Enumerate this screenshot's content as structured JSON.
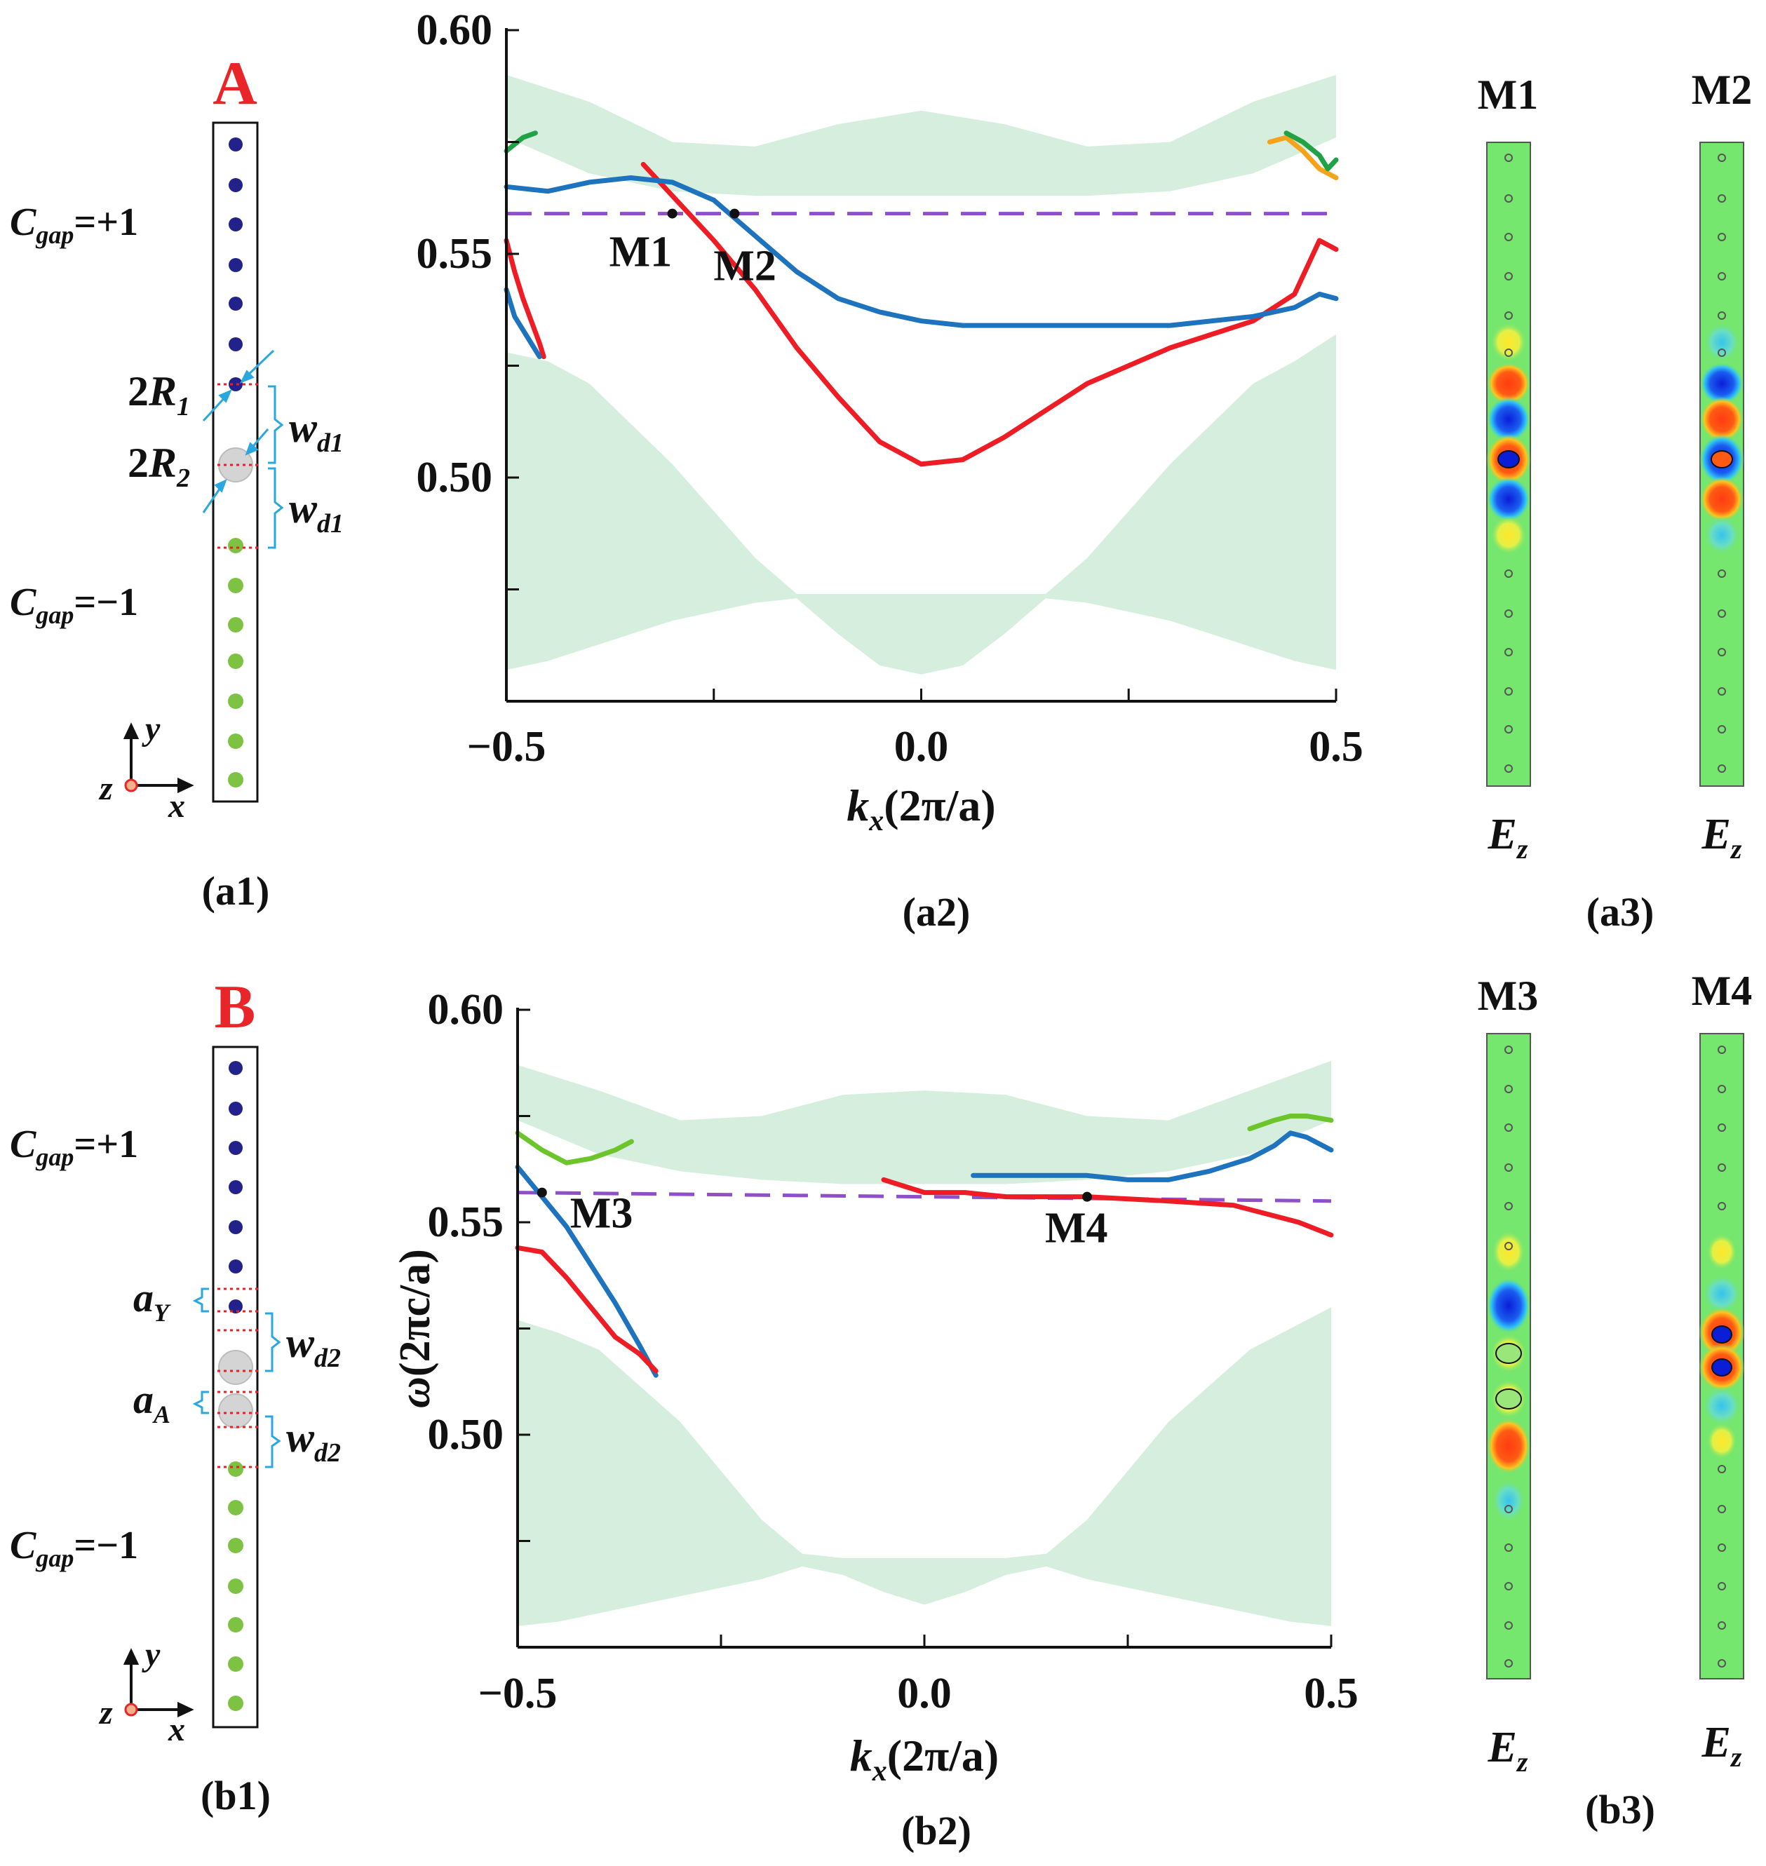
{
  "colors": {
    "red_label": "#e8262a",
    "blue_rod": "#22228a",
    "green_rod": "#7dc242",
    "band": "#d6eedd",
    "red_curve": "#ee1c24",
    "blue_curve": "#1e73be",
    "green_curve": "#22a246",
    "orange_curve": "#f5a31a",
    "lime_curve": "#6cc52a",
    "dashed": "#8e4fc9",
    "cyan": "#29a8e0"
  },
  "panel_a": {
    "structure": {
      "label": "A",
      "cgap_top": {
        "base": "C",
        "sub": "gap",
        "rest": "=+1"
      },
      "cgap_bottom": {
        "base": "C",
        "sub": "gap",
        "rest": "=−1"
      },
      "r1": {
        "pre": "2",
        "base": "R",
        "sub": "1"
      },
      "r2": {
        "pre": "2",
        "base": "R",
        "sub": "2"
      },
      "w1": {
        "base": "w",
        "sub": "d1"
      },
      "w2": {
        "base": "w",
        "sub": "d1"
      },
      "axes": {
        "y": "y",
        "x": "x",
        "z": "z"
      },
      "caption": "(a1)"
    },
    "chart_caption": "(a2)",
    "fields": {
      "caption": "(a3)",
      "items": [
        {
          "title": "M1",
          "field": {
            "base": "E",
            "sub": "z"
          }
        },
        {
          "title": "M2",
          "field": {
            "base": "E",
            "sub": "z"
          }
        }
      ]
    }
  },
  "panel_b": {
    "structure": {
      "label": "B",
      "cgap_top": {
        "base": "C",
        "sub": "gap",
        "rest": "=+1"
      },
      "cgap_bottom": {
        "base": "C",
        "sub": "gap",
        "rest": "=−1"
      },
      "ay": {
        "base": "a",
        "sub": "Y"
      },
      "aa": {
        "base": "a",
        "sub": "A"
      },
      "w1": {
        "base": "w",
        "sub": "d2"
      },
      "w2": {
        "base": "w",
        "sub": "d2"
      },
      "axes": {
        "y": "y",
        "x": "x",
        "z": "z"
      },
      "caption": "(b1)"
    },
    "chart_caption": "(b2)",
    "fields": {
      "caption": "(b3)",
      "items": [
        {
          "title": "M3",
          "field": {
            "base": "E",
            "sub": "z"
          }
        },
        {
          "title": "M4",
          "field": {
            "base": "E",
            "sub": "z"
          }
        }
      ]
    }
  },
  "chart_data": [
    {
      "id": "a2",
      "type": "line",
      "xlabel": {
        "base": "k",
        "sub": "x",
        "rest": "(2π/a)"
      },
      "ylabel": "",
      "xlim": [
        -0.5,
        0.5
      ],
      "ylim": [
        0.45,
        0.6
      ],
      "xticks": [
        "−0.5",
        "0.0",
        "0.5"
      ],
      "xtick_values": [
        -0.5,
        0.0,
        0.5
      ],
      "yticks": [
        "0.50",
        "0.55",
        "0.60"
      ],
      "ytick_values": [
        0.5,
        0.55,
        0.6
      ],
      "bulk_bands": [
        {
          "name": "upper bulk",
          "x": [
            -0.5,
            -0.4,
            -0.3,
            -0.2,
            -0.1,
            0,
            0.1,
            0.2,
            0.3,
            0.4,
            0.5
          ],
          "lower": [
            0.576,
            0.568,
            0.564,
            0.563,
            0.563,
            0.563,
            0.563,
            0.563,
            0.564,
            0.568,
            0.576
          ],
          "upper": [
            0.59,
            0.584,
            0.575,
            0.574,
            0.579,
            0.582,
            0.579,
            0.574,
            0.575,
            0.584,
            0.59
          ]
        },
        {
          "name": "lower bulk",
          "x": [
            -0.5,
            -0.45,
            -0.4,
            -0.3,
            -0.2,
            -0.15,
            -0.1,
            -0.05,
            0,
            0.05,
            0.1,
            0.15,
            0.2,
            0.3,
            0.4,
            0.45,
            0.5
          ],
          "lower": [
            0.457,
            0.459,
            0.462,
            0.468,
            0.472,
            0.473,
            0.465,
            0.458,
            0.456,
            0.458,
            0.465,
            0.473,
            0.472,
            0.468,
            0.462,
            0.459,
            0.457
          ],
          "upper": [
            0.528,
            0.526,
            0.521,
            0.503,
            0.482,
            0.474,
            0.474,
            0.474,
            0.474,
            0.474,
            0.474,
            0.474,
            0.482,
            0.503,
            0.521,
            0.526,
            0.532
          ]
        }
      ],
      "series": [
        {
          "name": "red edge",
          "color": "red_curve",
          "x": [
            -0.335,
            -0.3,
            -0.25,
            -0.2,
            -0.15,
            -0.1,
            -0.05,
            0,
            0.05,
            0.1,
            0.2,
            0.3,
            0.4,
            0.45,
            0.48,
            0.5
          ],
          "y": [
            0.57,
            0.563,
            0.553,
            0.542,
            0.529,
            0.518,
            0.508,
            0.503,
            0.504,
            0.509,
            0.521,
            0.529,
            0.535,
            0.541,
            0.553,
            0.551
          ]
        },
        {
          "name": "blue edge",
          "color": "blue_curve",
          "x": [
            -0.5,
            -0.45,
            -0.4,
            -0.35,
            -0.3,
            -0.25,
            -0.2,
            -0.15,
            -0.1,
            -0.05,
            0,
            0.05,
            0.1,
            0.2,
            0.3,
            0.4,
            0.45,
            0.48,
            0.5
          ],
          "y": [
            0.565,
            0.564,
            0.566,
            0.567,
            0.566,
            0.562,
            0.554,
            0.546,
            0.54,
            0.537,
            0.535,
            0.534,
            0.534,
            0.534,
            0.534,
            0.536,
            0.538,
            0.541,
            0.54
          ]
        },
        {
          "name": "red left",
          "color": "red_curve",
          "x": [
            -0.5,
            -0.49,
            -0.48,
            -0.47,
            -0.46,
            -0.455
          ],
          "y": [
            0.553,
            0.546,
            0.54,
            0.535,
            0.53,
            0.527
          ]
        },
        {
          "name": "blue left",
          "color": "blue_curve",
          "x": [
            -0.5,
            -0.49,
            -0.48,
            -0.47,
            -0.46
          ],
          "y": [
            0.542,
            0.536,
            0.533,
            0.53,
            0.527
          ]
        },
        {
          "name": "green left",
          "color": "green_curve",
          "x": [
            -0.5,
            -0.48,
            -0.465
          ],
          "y": [
            0.573,
            0.576,
            0.577
          ]
        },
        {
          "name": "orange right",
          "color": "orange_curve",
          "x": [
            0.42,
            0.44,
            0.46,
            0.48,
            0.5
          ],
          "y": [
            0.575,
            0.576,
            0.573,
            0.569,
            0.567
          ]
        },
        {
          "name": "green right",
          "color": "green_curve",
          "x": [
            0.44,
            0.46,
            0.48,
            0.49,
            0.5
          ],
          "y": [
            0.577,
            0.575,
            0.572,
            0.569,
            0.571
          ]
        }
      ],
      "dashed_level": {
        "y": 0.559,
        "x0": -0.5,
        "x1": 0.5
      },
      "points": [
        {
          "label": "M1",
          "x": -0.3,
          "y": 0.559
        },
        {
          "label": "M2",
          "x": -0.225,
          "y": 0.559
        }
      ]
    },
    {
      "id": "b2",
      "type": "line",
      "xlabel": {
        "base": "k",
        "sub": "x",
        "rest": "(2π/a)"
      },
      "ylabel": {
        "base": "ω",
        "rest": "(2πc/a)"
      },
      "xlim": [
        -0.5,
        0.5
      ],
      "ylim": [
        0.45,
        0.6
      ],
      "xticks": [
        "−0.5",
        "0.0",
        "0.5"
      ],
      "xtick_values": [
        -0.5,
        0.0,
        0.5
      ],
      "yticks": [
        "0.50",
        "0.55",
        "0.60"
      ],
      "ytick_values": [
        0.5,
        0.55,
        0.6
      ],
      "bulk_bands": [
        {
          "name": "upper bulk",
          "x": [
            -0.5,
            -0.4,
            -0.3,
            -0.2,
            -0.1,
            0,
            0.1,
            0.2,
            0.3,
            0.4,
            0.5
          ],
          "lower": [
            0.574,
            0.566,
            0.562,
            0.56,
            0.559,
            0.559,
            0.559,
            0.56,
            0.562,
            0.566,
            0.574
          ],
          "upper": [
            0.587,
            0.581,
            0.574,
            0.575,
            0.58,
            0.581,
            0.58,
            0.575,
            0.574,
            0.581,
            0.588
          ]
        },
        {
          "name": "lower bulk",
          "x": [
            -0.5,
            -0.45,
            -0.4,
            -0.3,
            -0.2,
            -0.15,
            -0.1,
            -0.05,
            0,
            0.05,
            0.1,
            0.15,
            0.2,
            0.3,
            0.4,
            0.45,
            0.5
          ],
          "lower": [
            0.455,
            0.456,
            0.458,
            0.462,
            0.466,
            0.469,
            0.467,
            0.463,
            0.46,
            0.463,
            0.467,
            0.469,
            0.466,
            0.462,
            0.458,
            0.456,
            0.455
          ],
          "upper": [
            0.527,
            0.524,
            0.52,
            0.503,
            0.48,
            0.472,
            0.471,
            0.471,
            0.471,
            0.471,
            0.471,
            0.472,
            0.48,
            0.503,
            0.52,
            0.525,
            0.53
          ]
        }
      ],
      "series": [
        {
          "name": "blue left",
          "color": "blue_curve",
          "x": [
            -0.5,
            -0.47,
            -0.44,
            -0.41,
            -0.38,
            -0.35,
            -0.33
          ],
          "y": [
            0.563,
            0.556,
            0.549,
            0.54,
            0.531,
            0.521,
            0.514
          ]
        },
        {
          "name": "red left",
          "color": "red_curve",
          "x": [
            -0.5,
            -0.47,
            -0.44,
            -0.41,
            -0.38,
            -0.35,
            -0.33
          ],
          "y": [
            0.544,
            0.543,
            0.537,
            0.53,
            0.523,
            0.519,
            0.515
          ]
        },
        {
          "name": "lime left",
          "color": "lime_curve",
          "x": [
            -0.5,
            -0.47,
            -0.44,
            -0.41,
            -0.38,
            -0.36
          ],
          "y": [
            0.571,
            0.567,
            0.564,
            0.565,
            0.567,
            0.569
          ]
        },
        {
          "name": "red right",
          "color": "red_curve",
          "x": [
            -0.05,
            0,
            0.05,
            0.1,
            0.2,
            0.3,
            0.38,
            0.42,
            0.46,
            0.5
          ],
          "y": [
            0.56,
            0.557,
            0.557,
            0.556,
            0.556,
            0.555,
            0.554,
            0.552,
            0.55,
            0.547
          ]
        },
        {
          "name": "blue right",
          "color": "blue_curve",
          "x": [
            0.06,
            0.1,
            0.15,
            0.2,
            0.25,
            0.3,
            0.35,
            0.4,
            0.43,
            0.45,
            0.47,
            0.5
          ],
          "y": [
            0.561,
            0.561,
            0.561,
            0.561,
            0.56,
            0.56,
            0.562,
            0.565,
            0.568,
            0.571,
            0.57,
            0.567
          ]
        },
        {
          "name": "lime right",
          "color": "lime_curve",
          "x": [
            0.4,
            0.43,
            0.45,
            0.47,
            0.5
          ],
          "y": [
            0.572,
            0.574,
            0.575,
            0.575,
            0.574
          ]
        }
      ],
      "dashed_level": {
        "y": 0.557,
        "y_end": 0.555,
        "x0": -0.5,
        "x1": 0.5
      },
      "points": [
        {
          "label": "M3",
          "x": -0.47,
          "y": 0.557
        },
        {
          "label": "M4",
          "x": 0.2,
          "y": 0.556
        }
      ]
    }
  ]
}
